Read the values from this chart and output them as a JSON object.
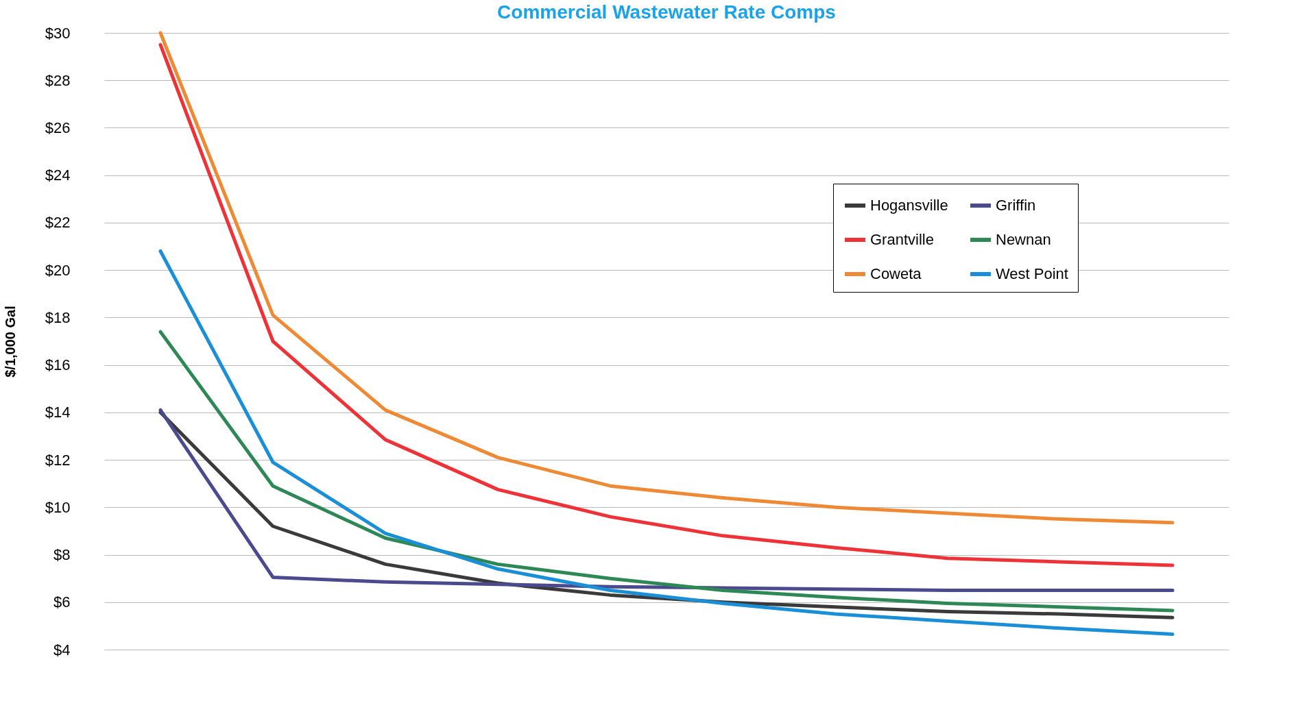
{
  "chart_data": {
    "type": "line",
    "title": "Commercial Wastewater Rate Comps",
    "ylabel": "$/1,000 Gal",
    "categories": [
      null,
      null,
      null,
      null,
      null,
      null,
      null,
      null,
      null,
      null
    ],
    "series": [
      {
        "name": "Hogansville",
        "color": "#3a3a3a",
        "values": [
          14,
          9.2,
          7.6,
          6.8,
          6.3,
          6.0,
          5.8,
          5.6,
          5.5,
          5.35
        ]
      },
      {
        "name": "Griffin",
        "color": "#4b4a8e",
        "values": [
          14.1,
          7.05,
          6.85,
          6.75,
          6.65,
          6.6,
          6.55,
          6.5,
          6.5,
          6.5
        ]
      },
      {
        "name": "Grantville",
        "color": "#ee3338",
        "values": [
          29.5,
          17,
          12.85,
          10.75,
          9.6,
          8.8,
          8.3,
          7.85,
          7.7,
          7.55
        ]
      },
      {
        "name": "Newnan",
        "color": "#2e8856",
        "values": [
          17.4,
          10.9,
          8.7,
          7.6,
          7.0,
          6.5,
          6.2,
          5.95,
          5.8,
          5.65
        ]
      },
      {
        "name": "Coweta",
        "color": "#ee8a35",
        "values": [
          30,
          18.1,
          14.1,
          12.1,
          10.9,
          10.4,
          10.0,
          9.75,
          9.5,
          9.35
        ]
      },
      {
        "name": "West Point",
        "color": "#1a8fd6",
        "values": [
          20.8,
          11.9,
          8.9,
          7.4,
          6.5,
          5.95,
          5.5,
          5.2,
          4.9,
          4.65
        ]
      }
    ],
    "ylim": [
      4,
      30
    ],
    "yticks": [
      {
        "value": 4,
        "label": "$4"
      },
      {
        "value": 6,
        "label": "$6"
      },
      {
        "value": 8,
        "label": "$8"
      },
      {
        "value": 10,
        "label": "$10"
      },
      {
        "value": 12,
        "label": "$12"
      },
      {
        "value": 14,
        "label": "$14"
      },
      {
        "value": 16,
        "label": "$16"
      },
      {
        "value": 18,
        "label": "$18"
      },
      {
        "value": 20,
        "label": "$20"
      },
      {
        "value": 22,
        "label": "$22"
      },
      {
        "value": 24,
        "label": "$24"
      },
      {
        "value": 26,
        "label": "$26"
      },
      {
        "value": 28,
        "label": "$28"
      },
      {
        "value": 30,
        "label": "$30"
      }
    ],
    "grid": "y",
    "legend": "top right",
    "tick_labels": "y",
    "line_style": "solid",
    "marker": "none"
  }
}
